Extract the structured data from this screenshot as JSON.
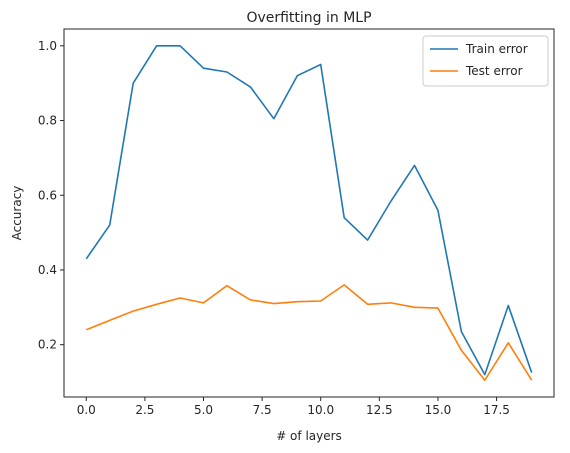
{
  "chart_data": {
    "type": "line",
    "title": "Overfitting in MLP",
    "xlabel": "# of layers",
    "ylabel": "Accuracy",
    "xlim": [
      -0.95,
      19.95
    ],
    "ylim": [
      0.06,
      1.045
    ],
    "xticks": [
      "0.0",
      "2.5",
      "5.0",
      "7.5",
      "10.0",
      "12.5",
      "15.0",
      "17.5"
    ],
    "xtick_values": [
      0,
      2.5,
      5,
      7.5,
      10,
      12.5,
      15,
      17.5
    ],
    "yticks": [
      "0.2",
      "0.4",
      "0.6",
      "0.8",
      "1.0"
    ],
    "ytick_values": [
      0.2,
      0.4,
      0.6,
      0.8,
      1.0
    ],
    "grid": false,
    "legend_position": "top-right",
    "x": [
      0,
      1,
      2,
      3,
      4,
      5,
      6,
      7,
      8,
      9,
      10,
      11,
      12,
      13,
      14,
      15,
      16,
      17,
      18,
      19
    ],
    "series": [
      {
        "name": "Train error",
        "color": "#1f77b4",
        "values": [
          0.43,
          0.52,
          0.9,
          1.0,
          1.0,
          0.94,
          0.93,
          0.89,
          0.805,
          0.92,
          0.95,
          0.54,
          0.48,
          0.585,
          0.68,
          0.56,
          0.235,
          0.12,
          0.305,
          0.125
        ]
      },
      {
        "name": "Test error",
        "color": "#ff7f0e",
        "values": [
          0.24,
          0.265,
          0.29,
          0.308,
          0.325,
          0.312,
          0.358,
          0.32,
          0.31,
          0.315,
          0.317,
          0.36,
          0.308,
          0.312,
          0.3,
          0.298,
          0.185,
          0.105,
          0.205,
          0.105
        ]
      }
    ]
  }
}
